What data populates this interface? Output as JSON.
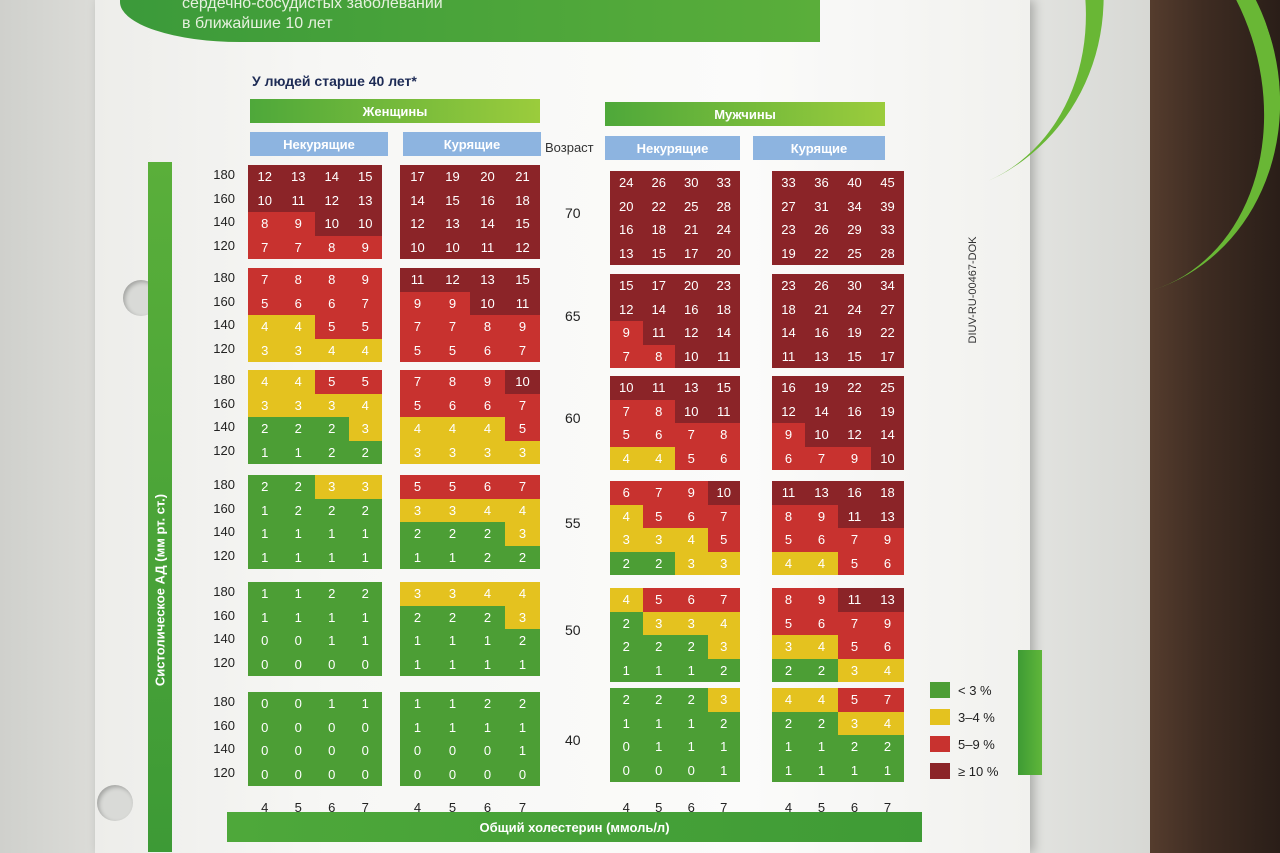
{
  "header": {
    "line1": "сердечно-сосудистых заболеваний",
    "line2": "в ближайшие 10 лет"
  },
  "subtitle": "У людей старше 40 лет*",
  "women": "Женщины",
  "men": "Мужчины",
  "nonsmokers": "Некурящие",
  "smokers": "Курящие",
  "age_label": "Возраст",
  "y_axis_label": "Систолическое АД (мм рт. ст.)",
  "x_axis_label": "Общий холестерин (ммоль/л)",
  "bp_levels": [
    "180",
    "160",
    "140",
    "120"
  ],
  "chol_levels": [
    "4",
    "5",
    "6",
    "7"
  ],
  "ages": [
    "70",
    "65",
    "60",
    "55",
    "50",
    "40"
  ],
  "doc_code": "DIUV-RU-00467-DOK",
  "legend": [
    {
      "label": "< 3 %",
      "color": "#4c9e35"
    },
    {
      "label": "3–4 %",
      "color": "#e4c21f"
    },
    {
      "label": "5–9 %",
      "color": "#c8322f"
    },
    {
      "label": "≥ 10 %",
      "color": "#8b2428"
    }
  ],
  "risk_tables": {
    "women_nonsmokers": [
      [
        [
          12,
          13,
          14,
          15
        ],
        [
          10,
          11,
          12,
          13
        ],
        [
          8,
          9,
          10,
          10
        ],
        [
          7,
          7,
          8,
          9
        ]
      ],
      [
        [
          7,
          8,
          8,
          9
        ],
        [
          5,
          6,
          6,
          7
        ],
        [
          4,
          4,
          5,
          5
        ],
        [
          3,
          3,
          4,
          4
        ]
      ],
      [
        [
          4,
          4,
          5,
          5
        ],
        [
          3,
          3,
          3,
          4
        ],
        [
          2,
          2,
          2,
          3
        ],
        [
          1,
          1,
          2,
          2
        ]
      ],
      [
        [
          2,
          2,
          3,
          3
        ],
        [
          1,
          2,
          2,
          2
        ],
        [
          1,
          1,
          1,
          1
        ],
        [
          1,
          1,
          1,
          1
        ]
      ],
      [
        [
          1,
          1,
          2,
          2
        ],
        [
          1,
          1,
          1,
          1
        ],
        [
          0,
          0,
          1,
          1
        ],
        [
          0,
          0,
          0,
          0
        ]
      ],
      [
        [
          0,
          0,
          1,
          1
        ],
        [
          0,
          0,
          0,
          0
        ],
        [
          0,
          0,
          0,
          0
        ],
        [
          0,
          0,
          0,
          0
        ]
      ]
    ],
    "women_smokers": [
      [
        [
          17,
          19,
          20,
          21
        ],
        [
          14,
          15,
          16,
          18
        ],
        [
          12,
          13,
          14,
          15
        ],
        [
          10,
          10,
          11,
          12
        ]
      ],
      [
        [
          11,
          12,
          13,
          15
        ],
        [
          9,
          9,
          10,
          11
        ],
        [
          7,
          7,
          8,
          9
        ],
        [
          5,
          5,
          6,
          7
        ]
      ],
      [
        [
          7,
          8,
          9,
          10
        ],
        [
          5,
          6,
          6,
          7
        ],
        [
          4,
          4,
          4,
          5
        ],
        [
          3,
          3,
          3,
          3
        ]
      ],
      [
        [
          5,
          5,
          6,
          7
        ],
        [
          3,
          3,
          4,
          4
        ],
        [
          2,
          2,
          2,
          3
        ],
        [
          1,
          1,
          2,
          2
        ]
      ],
      [
        [
          3,
          3,
          4,
          4
        ],
        [
          2,
          2,
          2,
          3
        ],
        [
          1,
          1,
          1,
          2
        ],
        [
          1,
          1,
          1,
          1
        ]
      ],
      [
        [
          1,
          1,
          2,
          2
        ],
        [
          1,
          1,
          1,
          1
        ],
        [
          0,
          0,
          0,
          1
        ],
        [
          0,
          0,
          0,
          0
        ]
      ]
    ],
    "men_nonsmokers": [
      [
        [
          24,
          26,
          30,
          33
        ],
        [
          20,
          22,
          25,
          28
        ],
        [
          16,
          18,
          21,
          24
        ],
        [
          13,
          15,
          17,
          20
        ]
      ],
      [
        [
          15,
          17,
          20,
          23
        ],
        [
          12,
          14,
          16,
          18
        ],
        [
          9,
          11,
          12,
          14
        ],
        [
          7,
          8,
          10,
          11
        ]
      ],
      [
        [
          10,
          11,
          13,
          15
        ],
        [
          7,
          8,
          10,
          11
        ],
        [
          5,
          6,
          7,
          8
        ],
        [
          4,
          4,
          5,
          6
        ]
      ],
      [
        [
          6,
          7,
          9,
          10
        ],
        [
          4,
          5,
          6,
          7
        ],
        [
          3,
          3,
          4,
          5
        ],
        [
          2,
          2,
          3,
          3
        ]
      ],
      [
        [
          4,
          5,
          6,
          7
        ],
        [
          2,
          3,
          3,
          4
        ],
        [
          2,
          2,
          2,
          3
        ],
        [
          1,
          1,
          1,
          2
        ]
      ],
      [
        [
          2,
          2,
          2,
          3
        ],
        [
          1,
          1,
          1,
          2
        ],
        [
          0,
          1,
          1,
          1
        ],
        [
          0,
          0,
          0,
          1
        ]
      ]
    ],
    "men_smokers": [
      [
        [
          33,
          36,
          40,
          45
        ],
        [
          27,
          31,
          34,
          39
        ],
        [
          23,
          26,
          29,
          33
        ],
        [
          19,
          22,
          25,
          28
        ]
      ],
      [
        [
          23,
          26,
          30,
          34
        ],
        [
          18,
          21,
          24,
          27
        ],
        [
          14,
          16,
          19,
          22
        ],
        [
          11,
          13,
          15,
          17
        ]
      ],
      [
        [
          16,
          19,
          22,
          25
        ],
        [
          12,
          14,
          16,
          19
        ],
        [
          9,
          10,
          12,
          14
        ],
        [
          6,
          7,
          9,
          10
        ]
      ],
      [
        [
          11,
          13,
          16,
          18
        ],
        [
          8,
          9,
          11,
          13
        ],
        [
          5,
          6,
          7,
          9
        ],
        [
          4,
          4,
          5,
          6
        ]
      ],
      [
        [
          8,
          9,
          11,
          13
        ],
        [
          5,
          6,
          7,
          9
        ],
        [
          3,
          4,
          5,
          6
        ],
        [
          2,
          2,
          3,
          4
        ]
      ],
      [
        [
          4,
          4,
          5,
          7
        ],
        [
          2,
          2,
          3,
          4
        ],
        [
          1,
          1,
          2,
          2
        ],
        [
          1,
          1,
          1,
          1
        ]
      ]
    ]
  }
}
